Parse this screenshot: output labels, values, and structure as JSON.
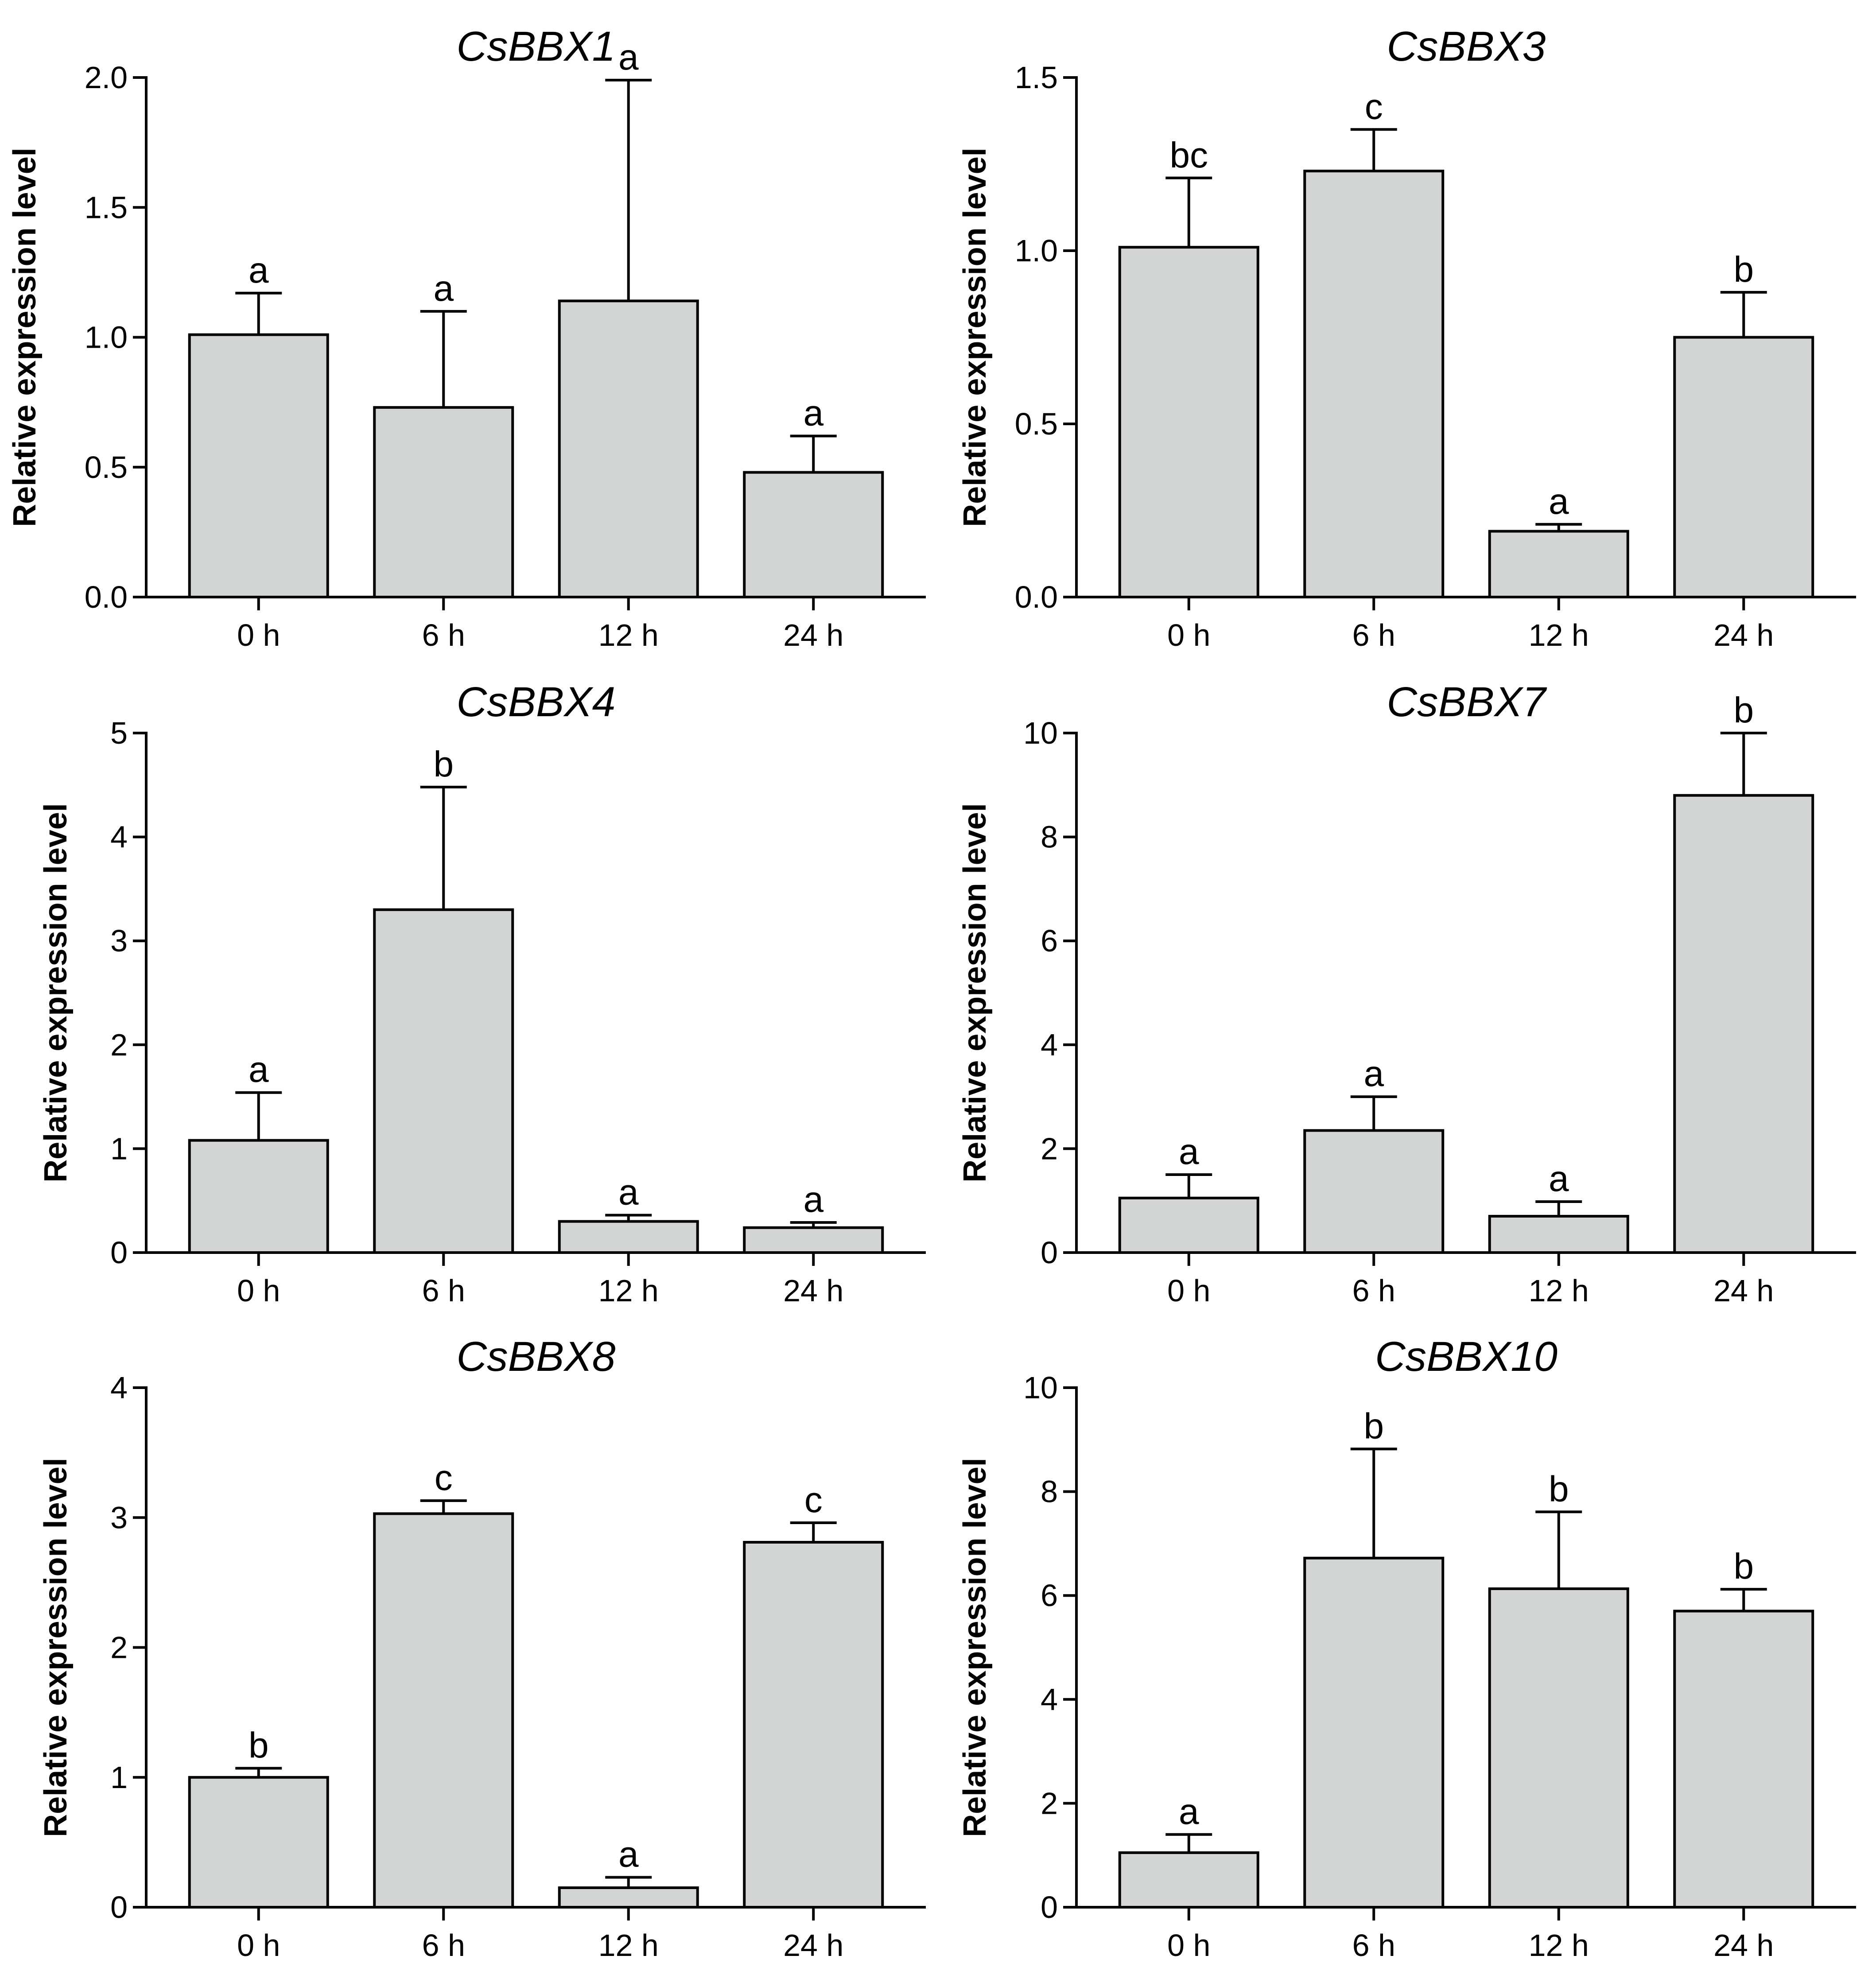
{
  "chart_data": [
    {
      "type": "bar",
      "title": "CsBBX1",
      "xlabel": "",
      "ylabel": "Relative expression level",
      "categories": [
        "0 h",
        "6 h",
        "12 h",
        "24 h"
      ],
      "values": [
        1.01,
        0.73,
        1.14,
        0.48
      ],
      "errors": [
        0.16,
        0.37,
        0.85,
        0.14
      ],
      "significance": [
        "a",
        "a",
        "a",
        "a"
      ],
      "ylim": [
        0,
        2.0
      ],
      "yticks": [
        "0.0",
        "0.5",
        "1.0",
        "1.5",
        "2.0"
      ],
      "bar_color": "#d3d5d4"
    },
    {
      "type": "bar",
      "title": "CsBBX3",
      "xlabel": "",
      "ylabel": "Relative expression level",
      "categories": [
        "0 h",
        "6 h",
        "12 h",
        "24 h"
      ],
      "values": [
        1.01,
        1.23,
        0.19,
        0.75
      ],
      "errors": [
        0.2,
        0.12,
        0.02,
        0.13
      ],
      "significance": [
        "bc",
        "c",
        "a",
        "b"
      ],
      "ylim": [
        0,
        1.5
      ],
      "yticks": [
        "0.0",
        "0.5",
        "1.0",
        "1.5"
      ],
      "bar_color": "#d3d5d4"
    },
    {
      "type": "bar",
      "title": "CsBBX4",
      "xlabel": "",
      "ylabel": "Relative expression level",
      "categories": [
        "0 h",
        "6 h",
        "12 h",
        "24 h"
      ],
      "values": [
        1.08,
        3.3,
        0.3,
        0.24
      ],
      "errors": [
        0.46,
        1.18,
        0.06,
        0.05
      ],
      "significance": [
        "a",
        "b",
        "a",
        "a"
      ],
      "ylim": [
        0,
        5
      ],
      "yticks": [
        "0",
        "1",
        "2",
        "3",
        "4",
        "5"
      ],
      "bar_color": "#d3d5d4"
    },
    {
      "type": "bar",
      "title": "CsBBX7",
      "xlabel": "",
      "ylabel": "Relative expression level",
      "categories": [
        "0 h",
        "6 h",
        "12 h",
        "24 h"
      ],
      "values": [
        1.05,
        2.35,
        0.7,
        8.8
      ],
      "errors": [
        0.45,
        0.65,
        0.28,
        1.2
      ],
      "significance": [
        "a",
        "a",
        "a",
        "b"
      ],
      "ylim": [
        0,
        10
      ],
      "yticks": [
        "0",
        "2",
        "4",
        "6",
        "8",
        "10"
      ],
      "bar_color": "#d3d5d4"
    },
    {
      "type": "bar",
      "title": "CsBBX8",
      "xlabel": "",
      "ylabel": "Relative expression level",
      "categories": [
        "0 h",
        "6 h",
        "12 h",
        "24 h"
      ],
      "values": [
        1.0,
        3.03,
        0.15,
        2.81
      ],
      "errors": [
        0.07,
        0.1,
        0.08,
        0.15
      ],
      "significance": [
        "b",
        "c",
        "a",
        "c"
      ],
      "ylim": [
        0,
        4
      ],
      "yticks": [
        "0",
        "1",
        "2",
        "3",
        "4"
      ],
      "bar_color": "#d3d5d4"
    },
    {
      "type": "bar",
      "title": "CsBBX10",
      "xlabel": "",
      "ylabel": "Relative expression level",
      "categories": [
        "0 h",
        "6 h",
        "12 h",
        "24 h"
      ],
      "values": [
        1.05,
        6.72,
        6.13,
        5.7
      ],
      "errors": [
        0.35,
        2.1,
        1.48,
        0.42
      ],
      "significance": [
        "a",
        "b",
        "b",
        "b"
      ],
      "ylim": [
        0,
        10
      ],
      "yticks": [
        "0",
        "2",
        "4",
        "6",
        "8",
        "10"
      ],
      "bar_color": "#d3d5d4"
    }
  ]
}
